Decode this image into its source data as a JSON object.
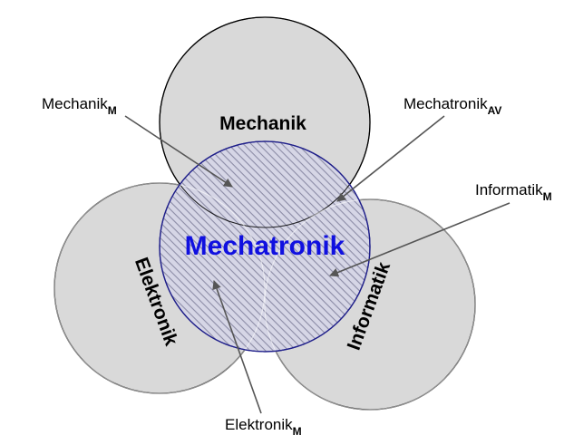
{
  "diagram": {
    "circles": {
      "top": "Mechanik",
      "left": "Elektronik",
      "right": "Informatik"
    },
    "center_label": "Mechatronik",
    "callouts": {
      "mechanik": {
        "text": "Mechanik",
        "sub": "M"
      },
      "mechatronik": {
        "text": "Mechatronik",
        "sub": "AV"
      },
      "informatik": {
        "text": "Informatik",
        "sub": "M"
      },
      "elektronik": {
        "text": "Elektronik",
        "sub": "M"
      }
    }
  },
  "colors": {
    "circle_fill": "#d9d9d9",
    "circle_stroke": "#000000",
    "center_stroke": "#1f1f8a",
    "hatch": "#8c8ca6",
    "center_text": "#1010e0",
    "arrow": "#555555"
  }
}
